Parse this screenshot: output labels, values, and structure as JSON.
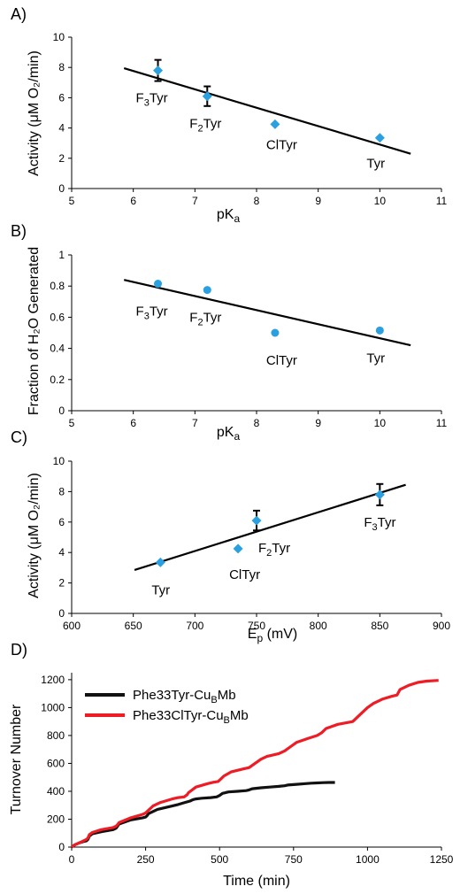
{
  "chart_data": [
    {
      "panel": "A)",
      "type": "scatter",
      "xlabel": "pK",
      "xlabel_sub": "a",
      "ylabel": "Activity (μM O₂/min)",
      "xlim": [
        5,
        11
      ],
      "ylim": [
        0,
        10
      ],
      "xticks": [
        5,
        6,
        7,
        8,
        9,
        10,
        11
      ],
      "yticks": [
        0,
        2,
        4,
        6,
        8,
        10
      ],
      "marker": "diamond",
      "marker_color": "#2aa0e0",
      "points": [
        {
          "label": "F3Tyr",
          "label_main": "F",
          "label_sub": "3",
          "label_tail": "Tyr",
          "x": 6.4,
          "y": 7.8,
          "err": 0.7
        },
        {
          "label": "F2Tyr",
          "label_main": "F",
          "label_sub": "2",
          "label_tail": "Tyr",
          "x": 7.2,
          "y": 6.1,
          "err": 0.65
        },
        {
          "label": "ClTyr",
          "label_main": "ClTyr",
          "label_sub": "",
          "label_tail": "",
          "x": 8.3,
          "y": 4.25
        },
        {
          "label": "Tyr",
          "label_main": "Tyr",
          "label_sub": "",
          "label_tail": "",
          "x": 10.0,
          "y": 3.35
        }
      ],
      "fit_line": [
        [
          5.85,
          7.95
        ],
        [
          10.5,
          2.3
        ]
      ]
    },
    {
      "panel": "B)",
      "type": "scatter",
      "xlabel": "pK",
      "xlabel_sub": "a",
      "ylabel": "Fraction of H₂O Generated",
      "xlim": [
        5,
        11
      ],
      "ylim": [
        0,
        1
      ],
      "xticks": [
        5,
        6,
        7,
        8,
        9,
        10,
        11
      ],
      "yticks": [
        0,
        0.2,
        0.4,
        0.6,
        0.8,
        1
      ],
      "marker": "circle",
      "marker_color": "#2aa0e0",
      "points": [
        {
          "label": "F3Tyr",
          "label_main": "F",
          "label_sub": "3",
          "label_tail": "Tyr",
          "x": 6.4,
          "y": 0.815
        },
        {
          "label": "F2Tyr",
          "label_main": "F",
          "label_sub": "2",
          "label_tail": "Tyr",
          "x": 7.2,
          "y": 0.775
        },
        {
          "label": "ClTyr",
          "label_main": "ClTyr",
          "label_sub": "",
          "label_tail": "",
          "x": 8.3,
          "y": 0.5
        },
        {
          "label": "Tyr",
          "label_main": "Tyr",
          "label_sub": "",
          "label_tail": "",
          "x": 10.0,
          "y": 0.515
        }
      ],
      "fit_line": [
        [
          5.85,
          0.84
        ],
        [
          10.5,
          0.42
        ]
      ]
    },
    {
      "panel": "C)",
      "type": "scatter",
      "xlabel": "E",
      "xlabel_sub": "p",
      "xlabel_tail": " (mV)",
      "ylabel": "Activity (μM O₂/min)",
      "xlim": [
        600,
        900
      ],
      "ylim": [
        0,
        10
      ],
      "xticks": [
        600,
        650,
        700,
        750,
        800,
        850,
        900
      ],
      "yticks": [
        0,
        2,
        4,
        6,
        8,
        10
      ],
      "marker": "diamond",
      "marker_color": "#2aa0e0",
      "points": [
        {
          "label": "Tyr",
          "label_main": "Tyr",
          "label_sub": "",
          "label_tail": "",
          "x": 672,
          "y": 3.35
        },
        {
          "label": "ClTyr",
          "label_main": "ClTyr",
          "label_sub": "",
          "label_tail": "",
          "x": 735,
          "y": 4.25
        },
        {
          "label": "F2Tyr",
          "label_main": "F",
          "label_sub": "2",
          "label_tail": "Tyr",
          "x": 750,
          "y": 6.1,
          "err": 0.65
        },
        {
          "label": "F3Tyr",
          "label_main": "F",
          "label_sub": "3",
          "label_tail": "Tyr",
          "x": 850,
          "y": 7.8,
          "err": 0.7
        }
      ],
      "fit_line": [
        [
          651,
          2.85
        ],
        [
          871,
          8.45
        ]
      ]
    },
    {
      "panel": "D)",
      "type": "line",
      "xlabel": "Time (min)",
      "ylabel": "Turnover Number",
      "xlim": [
        0,
        1250
      ],
      "ylim": [
        0,
        1250
      ],
      "xticks": [
        0,
        250,
        500,
        750,
        1000,
        1250
      ],
      "yticks": [
        0,
        200,
        400,
        600,
        800,
        1000,
        1200
      ],
      "legend_position": "top-left",
      "series": [
        {
          "name": "Phe33Tyr-CuBMb",
          "name_main": "Phe33Tyr-Cu",
          "name_sub": "B",
          "name_tail": "Mb",
          "color": "#111111",
          "x": [
            0,
            10,
            25,
            40,
            50,
            55,
            60,
            70,
            100,
            140,
            150,
            155,
            160,
            200,
            240,
            250,
            255,
            260,
            290,
            330,
            360,
            380,
            400,
            410,
            420,
            440,
            470,
            490,
            500,
            510,
            530,
            560,
            590,
            600,
            610,
            640,
            670,
            700,
            720,
            730,
            760,
            790,
            810,
            830,
            850,
            870,
            890
          ],
          "y": [
            0,
            15,
            30,
            40,
            45,
            55,
            80,
            95,
            110,
            125,
            135,
            150,
            165,
            195,
            210,
            215,
            225,
            240,
            270,
            290,
            305,
            318,
            330,
            340,
            345,
            350,
            355,
            360,
            370,
            385,
            395,
            400,
            405,
            410,
            418,
            425,
            430,
            435,
            440,
            445,
            450,
            455,
            458,
            460,
            462,
            463,
            463
          ]
        },
        {
          "name": "Phe33ClTyr-CuBMb",
          "name_main": "Phe33ClTyr-Cu",
          "name_sub": "B",
          "name_tail": "Mb",
          "color": "#ee1c25",
          "x": [
            0,
            10,
            25,
            40,
            50,
            55,
            60,
            70,
            100,
            140,
            150,
            155,
            160,
            200,
            240,
            250,
            265,
            275,
            300,
            340,
            360,
            380,
            390,
            395,
            420,
            460,
            480,
            495,
            505,
            515,
            540,
            580,
            600,
            620,
            640,
            660,
            700,
            720,
            740,
            760,
            800,
            830,
            845,
            860,
            900,
            950,
            980,
            1000,
            1020,
            1050,
            1080,
            1100,
            1110,
            1140,
            1170,
            1200,
            1240
          ],
          "y": [
            0,
            15,
            30,
            45,
            55,
            65,
            90,
            105,
            125,
            140,
            150,
            160,
            175,
            210,
            235,
            245,
            275,
            295,
            320,
            345,
            355,
            360,
            375,
            390,
            430,
            455,
            465,
            470,
            490,
            510,
            540,
            560,
            570,
            600,
            630,
            650,
            670,
            690,
            720,
            750,
            780,
            800,
            820,
            850,
            880,
            900,
            960,
            1000,
            1030,
            1060,
            1080,
            1090,
            1130,
            1160,
            1180,
            1190,
            1195
          ]
        }
      ]
    }
  ]
}
